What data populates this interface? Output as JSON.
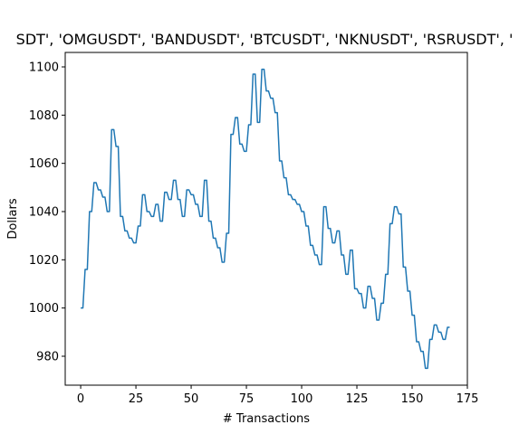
{
  "chart_data": {
    "type": "line",
    "title": "SDT', 'OMGUSDT', 'BANDUSDT', 'BTCUSDT', 'NKNUSDT', 'RSRUSDT', '",
    "xlabel": "# Transactions",
    "ylabel": "Dollars",
    "xlim": [
      -7,
      175
    ],
    "ylim": [
      968,
      1106
    ],
    "xticks": [
      0,
      25,
      50,
      75,
      100,
      125,
      150,
      175
    ],
    "yticks": [
      980,
      1000,
      1020,
      1040,
      1060,
      1080,
      1100
    ],
    "grid": false,
    "line_color": "#1f77b4",
    "series": [
      {
        "values": [
          1000,
          1000,
          1016,
          1016,
          1040,
          1040,
          1052,
          1052,
          1049,
          1049,
          1046,
          1046,
          1040,
          1040,
          1074,
          1074,
          1067,
          1067,
          1038,
          1038,
          1032,
          1032,
          1029,
          1029,
          1027,
          1027,
          1034,
          1034,
          1047,
          1047,
          1040,
          1040,
          1038,
          1038,
          1043,
          1043,
          1036,
          1036,
          1048,
          1048,
          1045,
          1045,
          1053,
          1053,
          1045,
          1045,
          1038,
          1038,
          1049,
          1049,
          1047,
          1047,
          1043,
          1043,
          1038,
          1038,
          1053,
          1053,
          1036,
          1036,
          1029,
          1029,
          1025,
          1025,
          1019,
          1019,
          1031,
          1031,
          1072,
          1072,
          1079,
          1079,
          1068,
          1068,
          1065,
          1065,
          1076,
          1076,
          1097,
          1097,
          1077,
          1077,
          1099,
          1099,
          1090,
          1090,
          1087,
          1087,
          1081,
          1081,
          1061,
          1061,
          1054,
          1054,
          1047,
          1047,
          1045,
          1045,
          1043,
          1043,
          1040,
          1040,
          1034,
          1034,
          1026,
          1026,
          1022,
          1022,
          1018,
          1018,
          1042,
          1042,
          1033,
          1033,
          1027,
          1027,
          1032,
          1032,
          1022,
          1022,
          1014,
          1014,
          1024,
          1024,
          1008,
          1008,
          1006,
          1006,
          1000,
          1000,
          1009,
          1009,
          1004,
          1004,
          995,
          995,
          1002,
          1002,
          1014,
          1014,
          1035,
          1035,
          1042,
          1042,
          1039,
          1039,
          1017,
          1017,
          1007,
          1007,
          997,
          997,
          986,
          986,
          982,
          982,
          975,
          975,
          987,
          987,
          993,
          993,
          990,
          990,
          987,
          987,
          992,
          992
        ]
      }
    ]
  }
}
